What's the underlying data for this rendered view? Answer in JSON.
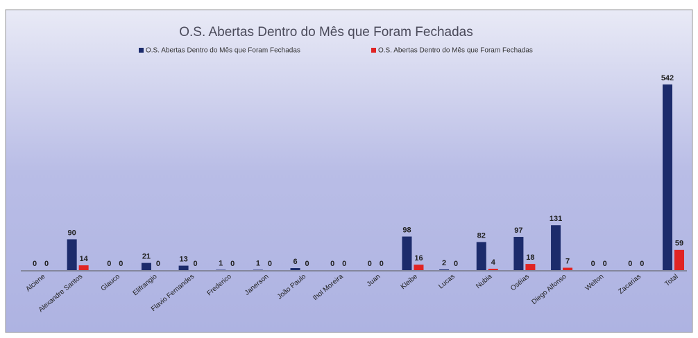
{
  "chart_data": {
    "type": "bar",
    "title": "O.S. Abertas Dentro do Mês que Foram Fechadas",
    "categories": [
      "Alciene",
      "Alexandre Santos",
      "Glauco",
      "Elifrangio",
      "Flavio Fernandes",
      "Frederico",
      "Janerson",
      "João Paulo",
      "Ihol Moreira",
      "Juan",
      "Kleibe",
      "Lucas",
      "Nubia",
      "Oséias",
      "Diego Alfonso",
      "Welton",
      "Zacarias",
      "Total"
    ],
    "series": [
      {
        "name": "O.S. Abertas Dentro do Mês que Foram Fechadas",
        "color": "#1c2b6b",
        "values": [
          0,
          90,
          0,
          21,
          13,
          1,
          1,
          6,
          0,
          0,
          98,
          2,
          82,
          97,
          131,
          0,
          0,
          542
        ]
      },
      {
        "name": "O.S. Abertas Dentro do Mês que Foram Fechadas",
        "color": "#e02424",
        "values": [
          0,
          14,
          0,
          0,
          0,
          0,
          0,
          0,
          0,
          0,
          16,
          0,
          4,
          18,
          7,
          0,
          0,
          59
        ]
      }
    ],
    "ylim": [
      0,
      560
    ],
    "legend": "top"
  }
}
